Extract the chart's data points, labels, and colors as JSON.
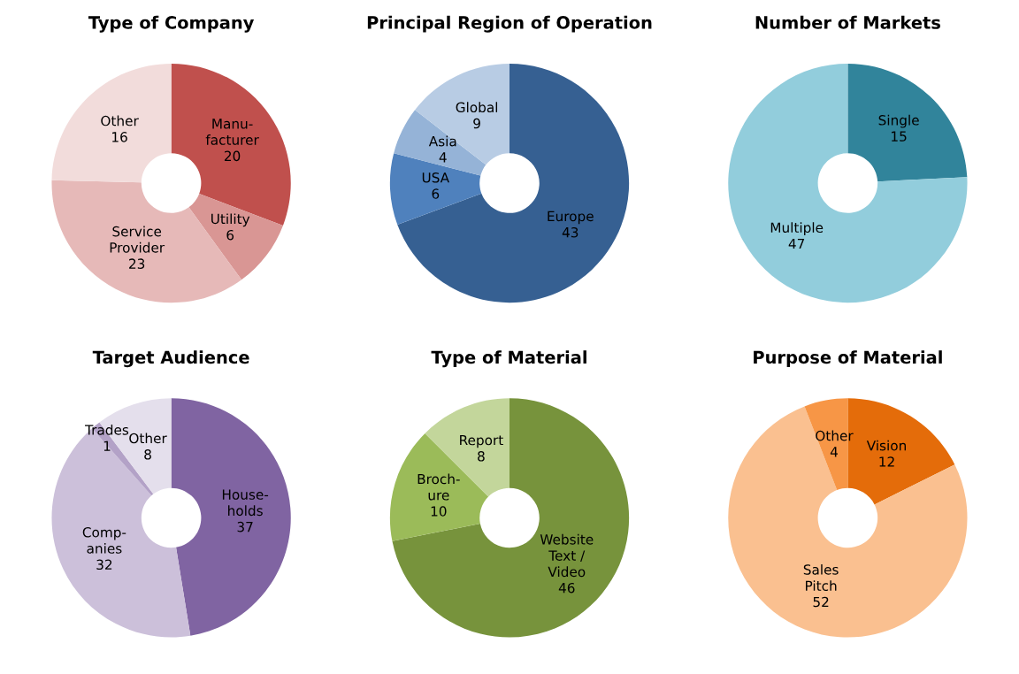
{
  "chart_data": [
    {
      "type": "donut",
      "title": "Type of Company",
      "categories": [
        "Manu-\nfacturer",
        "Utility",
        "Service\nProvider",
        "Other"
      ],
      "values": [
        20,
        6,
        23,
        16
      ],
      "colors": [
        "#c0504d",
        "#d99694",
        "#e6b9b8",
        "#f2dcdb"
      ],
      "data_labels": true,
      "legend": false
    },
    {
      "type": "donut",
      "title": "Principal Region of Operation",
      "categories": [
        "Europe",
        "USA",
        "Asia",
        "Global"
      ],
      "values": [
        43,
        6,
        4,
        9
      ],
      "colors": [
        "#366092",
        "#4f81bd",
        "#95b3d7",
        "#b8cce4"
      ],
      "data_labels": true,
      "legend": false
    },
    {
      "type": "donut",
      "title": "Number of Markets",
      "categories": [
        "Single",
        "Multiple"
      ],
      "values": [
        15,
        47
      ],
      "colors": [
        "#31849b",
        "#92cddc"
      ],
      "data_labels": true,
      "legend": false
    },
    {
      "type": "donut",
      "title": "Target Audience",
      "categories": [
        "House-\nholds",
        "Comp-\nanies",
        "Trades",
        "Other"
      ],
      "values": [
        37,
        32,
        1,
        8
      ],
      "colors": [
        "#8064a2",
        "#ccc0da",
        "#b3a2c7",
        "#e4dfec"
      ],
      "data_labels": true,
      "legend": false
    },
    {
      "type": "donut",
      "title": "Type of Material",
      "categories": [
        "Website\nText /\nVideo",
        "Broch-\nure",
        "Report"
      ],
      "values": [
        46,
        10,
        8
      ],
      "colors": [
        "#77933c",
        "#9bbb59",
        "#c3d69b"
      ],
      "data_labels": true,
      "legend": false
    },
    {
      "type": "donut",
      "title": "Purpose of Material",
      "categories": [
        "Vision",
        "Sales\nPitch",
        "Other"
      ],
      "values": [
        12,
        52,
        4
      ],
      "colors": [
        "#e46c0a",
        "#fac090",
        "#f79646"
      ],
      "data_labels": true,
      "legend": false
    }
  ]
}
